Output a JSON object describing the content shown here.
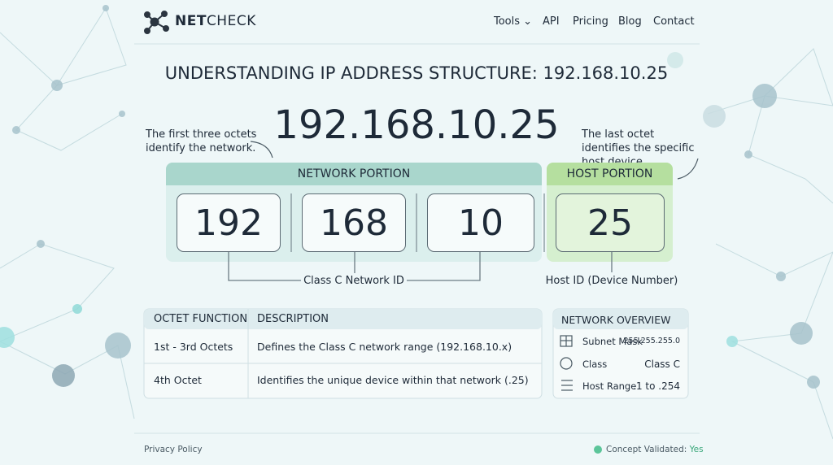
{
  "header": {
    "logo_bold": "NET",
    "logo_rest": "CHECK",
    "nav": [
      "Tools",
      "API",
      "Pricing",
      "Blog",
      "Contact"
    ]
  },
  "title": "UNDERSTANDING IP ADDRESS STRUCTURE: 192.168.10.25",
  "ip": "192.168.10.25",
  "notes": {
    "left": "The first three octets identify the network.",
    "right": "The last octet identifies the specific host device."
  },
  "diagram": {
    "network_label": "NETWORK PORTION",
    "host_label": "HOST PORTION",
    "octets": [
      "192",
      "168",
      "10",
      "25"
    ],
    "network_id": "Class C Network ID",
    "host_id": "Host ID (Device Number)"
  },
  "table": {
    "headers": [
      "OCTET FUNCTION",
      "DESCRIPTION"
    ],
    "rows": [
      [
        "1st - 3rd Octets",
        "Defines the Class C network range (192.168.10.x)"
      ],
      [
        "4th Octet",
        "Identifies the unique device within that network (.25)"
      ]
    ]
  },
  "overview": {
    "title": "NETWORK OVERVIEW",
    "rows": [
      {
        "label": "Subnet Mask",
        "value": "255.255.255.0"
      },
      {
        "label": "Class",
        "value": "Class C"
      },
      {
        "label": "Host Range",
        "value": ".1 to .254"
      }
    ]
  },
  "footer": {
    "privacy": "Privacy Policy",
    "status_label": "Concept Validated:",
    "status_value": "Yes"
  }
}
